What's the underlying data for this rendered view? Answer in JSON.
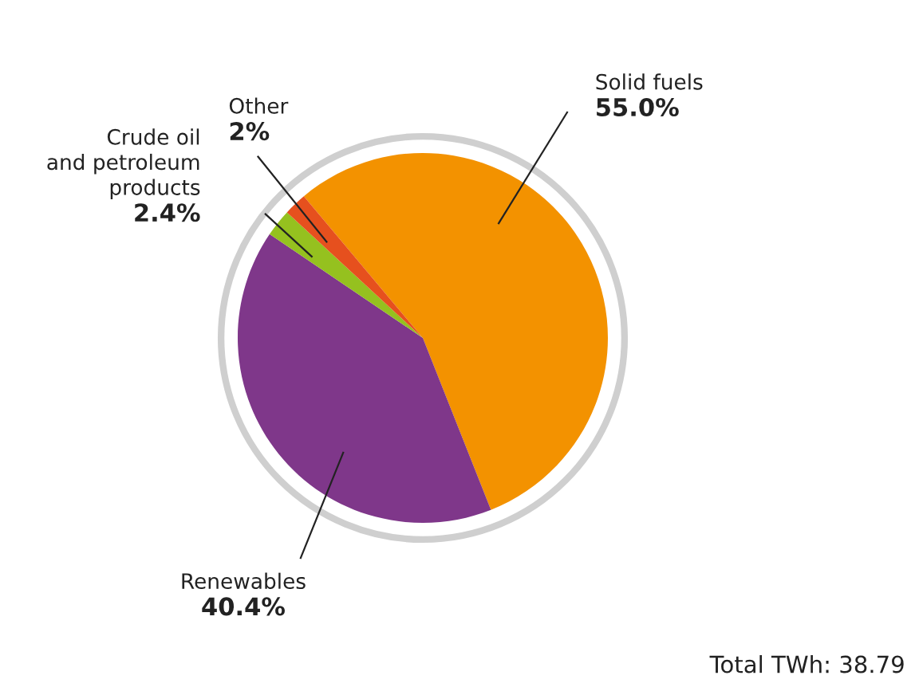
{
  "chart_data": {
    "type": "pie",
    "categories": [
      "Solid fuels",
      "Renewables",
      "Crude oil\nand petroleum\nproducts",
      "Other"
    ],
    "values": [
      55.0,
      40.4,
      2.4,
      2
    ],
    "value_labels": [
      "55.0%",
      "40.4%",
      "2.4%",
      "2%"
    ],
    "colors": [
      "#f39200",
      "#7f378a",
      "#95c11f",
      "#e6501e"
    ],
    "annotations": [
      "Total TWh: 38.79"
    ],
    "legend": false
  }
}
